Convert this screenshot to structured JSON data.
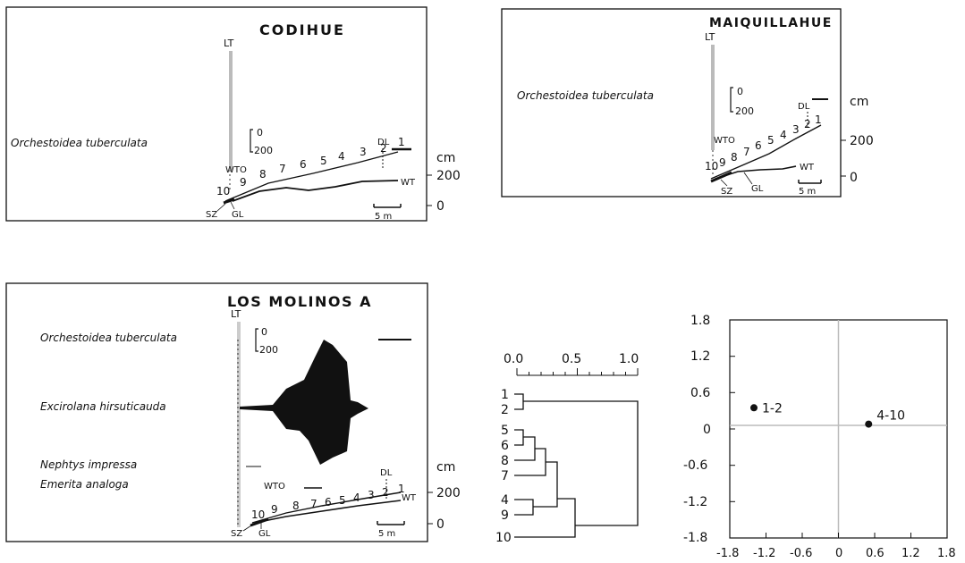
{
  "codihue": {
    "title": "CODIHUE",
    "species": [
      "Orchestoidea tuberculata"
    ],
    "scale": [
      "0",
      "200"
    ],
    "labels": {
      "lt": "LT",
      "dl": "DL",
      "wto": "WTO",
      "wt": "WT",
      "sz": "SZ",
      "gl": "GL",
      "cm": "cm",
      "scalebar": "5 m"
    },
    "axis_ticks": [
      "200",
      "0"
    ],
    "stations": [
      "1",
      "2",
      "3",
      "4",
      "5",
      "6",
      "7",
      "8",
      "9",
      "10"
    ]
  },
  "maiquillahue": {
    "title": "MAIQUILLAHUE",
    "species": [
      "Orchestoidea tuberculata"
    ],
    "scale": [
      "0",
      "200"
    ],
    "labels": {
      "lt": "LT",
      "dl": "DL",
      "wto": "WTO",
      "wt": "WT",
      "sz": "SZ",
      "gl": "GL",
      "cm": "cm",
      "scalebar": "5 m"
    },
    "axis_ticks": [
      "200",
      "0"
    ],
    "stations": [
      "1",
      "2",
      "3",
      "4",
      "5",
      "6",
      "7",
      "8",
      "9",
      "10"
    ]
  },
  "losmolinos": {
    "title": "LOS MOLINOS A",
    "species": [
      "Orchestoidea tuberculata",
      "Excirolana hirsuticauda",
      "Nephtys impressa",
      "Emerita analoga"
    ],
    "scale": [
      "0",
      "200"
    ],
    "labels": {
      "lt": "LT",
      "dl": "DL",
      "wto": "WTO",
      "wt": "WT",
      "sz": "SZ",
      "gl": "GL",
      "cm": "cm",
      "scalebar": "5 m"
    },
    "axis_ticks": [
      "200",
      "0"
    ],
    "stations": [
      "1",
      "2",
      "3",
      "4",
      "5",
      "6",
      "7",
      "8",
      "9",
      "10"
    ]
  },
  "dendrogram": {
    "axis_ticks": [
      "0.0",
      "0.5",
      "1.0"
    ],
    "leaves": [
      "1",
      "2",
      "5",
      "6",
      "8",
      "7",
      "4",
      "9",
      "10"
    ]
  },
  "ordination": {
    "x_ticks": [
      "-1.8",
      "-1.2",
      "-0.6",
      "0",
      "0.6",
      "1.2",
      "1.8"
    ],
    "y_ticks": [
      "1.8",
      "1.2",
      "0.6",
      "0",
      "-0.6",
      "-1.2",
      "-1.8"
    ],
    "points": [
      {
        "label": "1-2",
        "x": -1.4,
        "y": 0.35
      },
      {
        "label": "4-10",
        "x": 0.5,
        "y": 0.08
      }
    ],
    "xlim": [
      -1.8,
      1.8
    ],
    "ylim": [
      -1.8,
      1.8
    ]
  }
}
